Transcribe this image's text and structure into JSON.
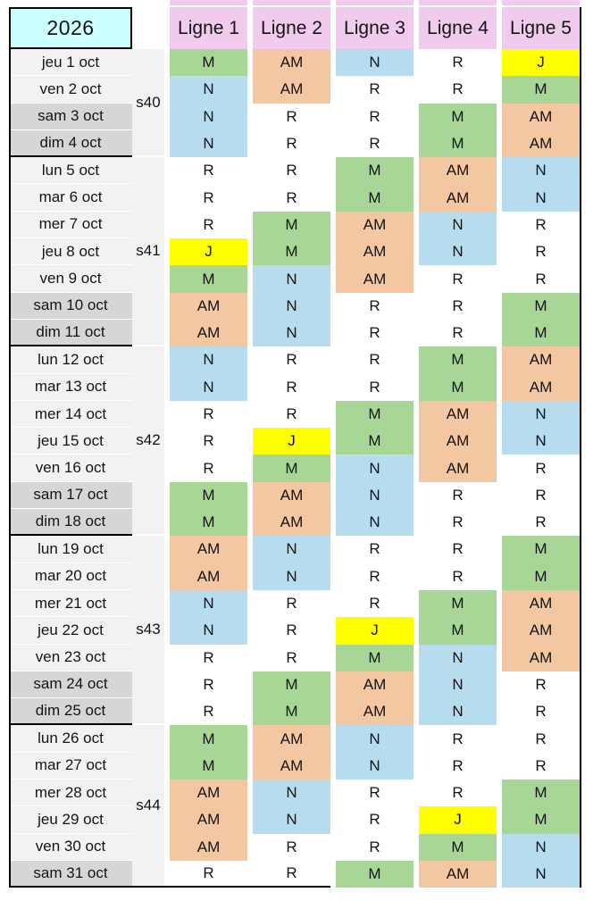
{
  "title_year": "2026",
  "columns": [
    "Ligne 1",
    "Ligne 2",
    "Ligne 3",
    "Ligne 4",
    "Ligne 5"
  ],
  "colors": {
    "M": "#a8d696",
    "AM": "#f4c7a3",
    "N": "#b7dcee",
    "R": "#ffffff",
    "J": "#ffff00",
    "header_bg": "#f0cbed",
    "year_bg": "#ccffff",
    "weekday_bg": "#f2f2f2",
    "weekend_bg": "#d6d6d6",
    "week_col_bg": "#f2f2f2",
    "border": "#000000"
  },
  "weeks": [
    {
      "label": "s40",
      "days": [
        {
          "date": "jeu 1 oct",
          "weekend": false,
          "shifts": [
            "M",
            "AM",
            "N",
            "R",
            "J"
          ]
        },
        {
          "date": "ven 2 oct",
          "weekend": false,
          "shifts": [
            "N",
            "AM",
            "R",
            "R",
            "M"
          ]
        },
        {
          "date": "sam 3 oct",
          "weekend": true,
          "shifts": [
            "N",
            "R",
            "R",
            "M",
            "AM"
          ]
        },
        {
          "date": "dim 4 oct",
          "weekend": true,
          "shifts": [
            "N",
            "R",
            "R",
            "M",
            "AM"
          ]
        }
      ]
    },
    {
      "label": "s41",
      "days": [
        {
          "date": "lun 5 oct",
          "weekend": false,
          "shifts": [
            "R",
            "R",
            "M",
            "AM",
            "N"
          ]
        },
        {
          "date": "mar 6 oct",
          "weekend": false,
          "shifts": [
            "R",
            "R",
            "M",
            "AM",
            "N"
          ]
        },
        {
          "date": "mer 7 oct",
          "weekend": false,
          "shifts": [
            "R",
            "M",
            "AM",
            "N",
            "R"
          ]
        },
        {
          "date": "jeu 8 oct",
          "weekend": false,
          "shifts": [
            "J",
            "M",
            "AM",
            "N",
            "R"
          ]
        },
        {
          "date": "ven 9 oct",
          "weekend": false,
          "shifts": [
            "M",
            "N",
            "AM",
            "R",
            "R"
          ]
        },
        {
          "date": "sam 10 oct",
          "weekend": true,
          "shifts": [
            "AM",
            "N",
            "R",
            "R",
            "M"
          ]
        },
        {
          "date": "dim 11 oct",
          "weekend": true,
          "shifts": [
            "AM",
            "N",
            "R",
            "R",
            "M"
          ]
        }
      ]
    },
    {
      "label": "s42",
      "days": [
        {
          "date": "lun 12 oct",
          "weekend": false,
          "shifts": [
            "N",
            "R",
            "R",
            "M",
            "AM"
          ]
        },
        {
          "date": "mar 13 oct",
          "weekend": false,
          "shifts": [
            "N",
            "R",
            "R",
            "M",
            "AM"
          ]
        },
        {
          "date": "mer 14 oct",
          "weekend": false,
          "shifts": [
            "R",
            "R",
            "M",
            "AM",
            "N"
          ]
        },
        {
          "date": "jeu 15 oct",
          "weekend": false,
          "shifts": [
            "R",
            "J",
            "M",
            "AM",
            "N"
          ]
        },
        {
          "date": "ven 16 oct",
          "weekend": false,
          "shifts": [
            "R",
            "M",
            "N",
            "AM",
            "R"
          ]
        },
        {
          "date": "sam 17 oct",
          "weekend": true,
          "shifts": [
            "M",
            "AM",
            "N",
            "R",
            "R"
          ]
        },
        {
          "date": "dim 18 oct",
          "weekend": true,
          "shifts": [
            "M",
            "AM",
            "N",
            "R",
            "R"
          ]
        }
      ]
    },
    {
      "label": "s43",
      "days": [
        {
          "date": "lun 19 oct",
          "weekend": false,
          "shifts": [
            "AM",
            "N",
            "R",
            "R",
            "M"
          ]
        },
        {
          "date": "mar 20 oct",
          "weekend": false,
          "shifts": [
            "AM",
            "N",
            "R",
            "R",
            "M"
          ]
        },
        {
          "date": "mer 21 oct",
          "weekend": false,
          "shifts": [
            "N",
            "R",
            "R",
            "M",
            "AM"
          ]
        },
        {
          "date": "jeu 22 oct",
          "weekend": false,
          "shifts": [
            "N",
            "R",
            "J",
            "M",
            "AM"
          ]
        },
        {
          "date": "ven 23 oct",
          "weekend": false,
          "shifts": [
            "R",
            "R",
            "M",
            "N",
            "AM"
          ]
        },
        {
          "date": "sam 24 oct",
          "weekend": true,
          "shifts": [
            "R",
            "M",
            "AM",
            "N",
            "R"
          ]
        },
        {
          "date": "dim 25 oct",
          "weekend": true,
          "shifts": [
            "R",
            "M",
            "AM",
            "N",
            "R"
          ]
        }
      ]
    },
    {
      "label": "s44",
      "days": [
        {
          "date": "lun 26 oct",
          "weekend": false,
          "shifts": [
            "M",
            "AM",
            "N",
            "R",
            "R"
          ]
        },
        {
          "date": "mar 27 oct",
          "weekend": false,
          "shifts": [
            "M",
            "AM",
            "N",
            "R",
            "R"
          ]
        },
        {
          "date": "mer 28 oct",
          "weekend": false,
          "shifts": [
            "AM",
            "N",
            "R",
            "R",
            "M"
          ]
        },
        {
          "date": "jeu 29 oct",
          "weekend": false,
          "shifts": [
            "AM",
            "N",
            "R",
            "J",
            "M"
          ]
        },
        {
          "date": "ven 30 oct",
          "weekend": false,
          "shifts": [
            "AM",
            "R",
            "R",
            "M",
            "N"
          ]
        },
        {
          "date": "sam 31 oct",
          "weekend": true,
          "shifts": [
            "R",
            "R",
            "M",
            "AM",
            "N"
          ]
        }
      ]
    }
  ]
}
